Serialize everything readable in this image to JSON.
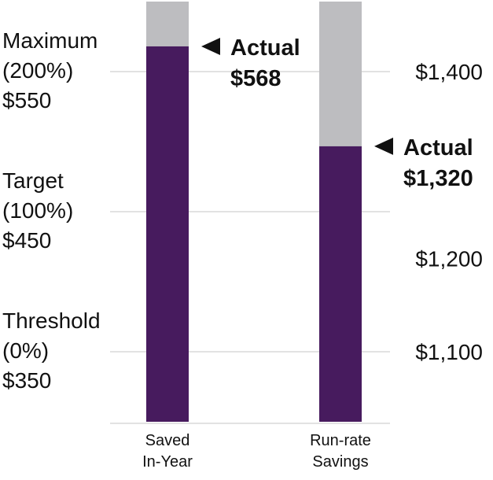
{
  "chart_data": {
    "type": "bar",
    "title": "",
    "grid": true,
    "colors": {
      "achieved": "#471b5e",
      "remaining": "#bdbdc0",
      "grid": "#e2e2e2",
      "marker": "#111111"
    },
    "left_axis": {
      "range": [
        300,
        600
      ],
      "ticks": [
        {
          "value": 550,
          "lines": [
            "Maximum",
            "(200%)",
            "$550"
          ]
        },
        {
          "value": 450,
          "lines": [
            "Target",
            "(100%)",
            "$450"
          ]
        },
        {
          "value": 350,
          "lines": [
            "Threshold",
            "(0%)",
            "$350"
          ]
        }
      ]
    },
    "right_axis": {
      "range": [
        1025,
        1475
      ],
      "ticks": [
        {
          "value": 1400,
          "label": "$1,400"
        },
        {
          "value": 1200,
          "label": "$1,200"
        },
        {
          "value": 1100,
          "label": "$1,100"
        }
      ]
    },
    "bars": [
      {
        "category_lines": [
          "Saved",
          "In-Year"
        ],
        "axis": "left",
        "actual": 568,
        "actual_label": "Actual",
        "actual_value_label": "$568"
      },
      {
        "category_lines": [
          "Run-rate",
          "Savings"
        ],
        "axis": "right",
        "actual": 1320,
        "actual_label": "Actual",
        "actual_value_label": "$1,320"
      }
    ]
  }
}
